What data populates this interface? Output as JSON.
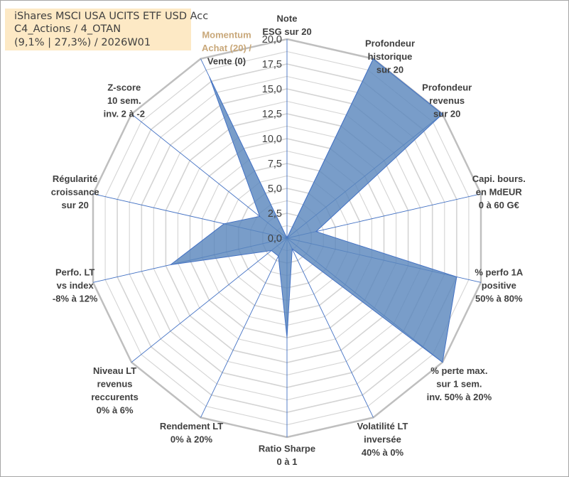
{
  "title": {
    "line1": "iShares MSCI USA UCITS ETF USD Acc",
    "line2": "C4_Actions / 4_OTAN",
    "line3": "(9,1% | 27,3%) / 2026W01"
  },
  "colors": {
    "fill": "#5b87bd",
    "stroke": "#4472c4",
    "grid_ring": "#d4d4d4",
    "grid_outer": "#bfbfbf",
    "spoke": "#4472c4",
    "title_bg": "#fde9c5",
    "text": "#404040",
    "faded_text": "#c9a87a"
  },
  "chart_data": {
    "type": "radar",
    "range": [
      0,
      20
    ],
    "ticks": [
      "0,0",
      "2,5",
      "5,0",
      "7,5",
      "10,0",
      "12,5",
      "15,0",
      "17,5",
      "20,0"
    ],
    "grid": true,
    "axes": [
      {
        "label": [
          "Note",
          "ESG sur 20"
        ]
      },
      {
        "label": [
          "Profondeur",
          "historique",
          "sur 20"
        ]
      },
      {
        "label": [
          "Profondeur",
          "revenus",
          "sur 20"
        ]
      },
      {
        "label": [
          "Capi. bours.",
          "en MdEUR",
          "0 à 60 G€"
        ]
      },
      {
        "label": [
          "% perfo 1A",
          "positive",
          "50% à 80%"
        ]
      },
      {
        "label": [
          "% perte max.",
          "sur 1 sem.",
          "inv. 50% à 20%"
        ]
      },
      {
        "label": [
          "Volatilité LT",
          "inversée",
          "40% à 0%"
        ]
      },
      {
        "label": [
          "Ratio Sharpe",
          "0 à 1"
        ]
      },
      {
        "label": [
          "Rendement LT",
          "0% à 20%"
        ]
      },
      {
        "label": [
          "Niveau LT",
          "revenus",
          "reccurents",
          "0% à 6%"
        ]
      },
      {
        "label": [
          "Perfo. LT",
          "vs index",
          "-8% à 12%"
        ]
      },
      {
        "label": [
          "Régularité",
          "croissance",
          "sur 20"
        ]
      },
      {
        "label": [
          "Z-score",
          "10 sem.",
          "inv. 2 à -2"
        ]
      },
      {
        "label": [
          "Momentum",
          "Achat (20) /",
          "Vente (0)"
        ]
      }
    ],
    "series": [
      {
        "values": [
          0,
          20,
          20,
          3,
          17.5,
          20,
          1.2,
          10,
          2,
          2,
          12,
          6.5,
          3.5,
          18
        ]
      }
    ]
  }
}
